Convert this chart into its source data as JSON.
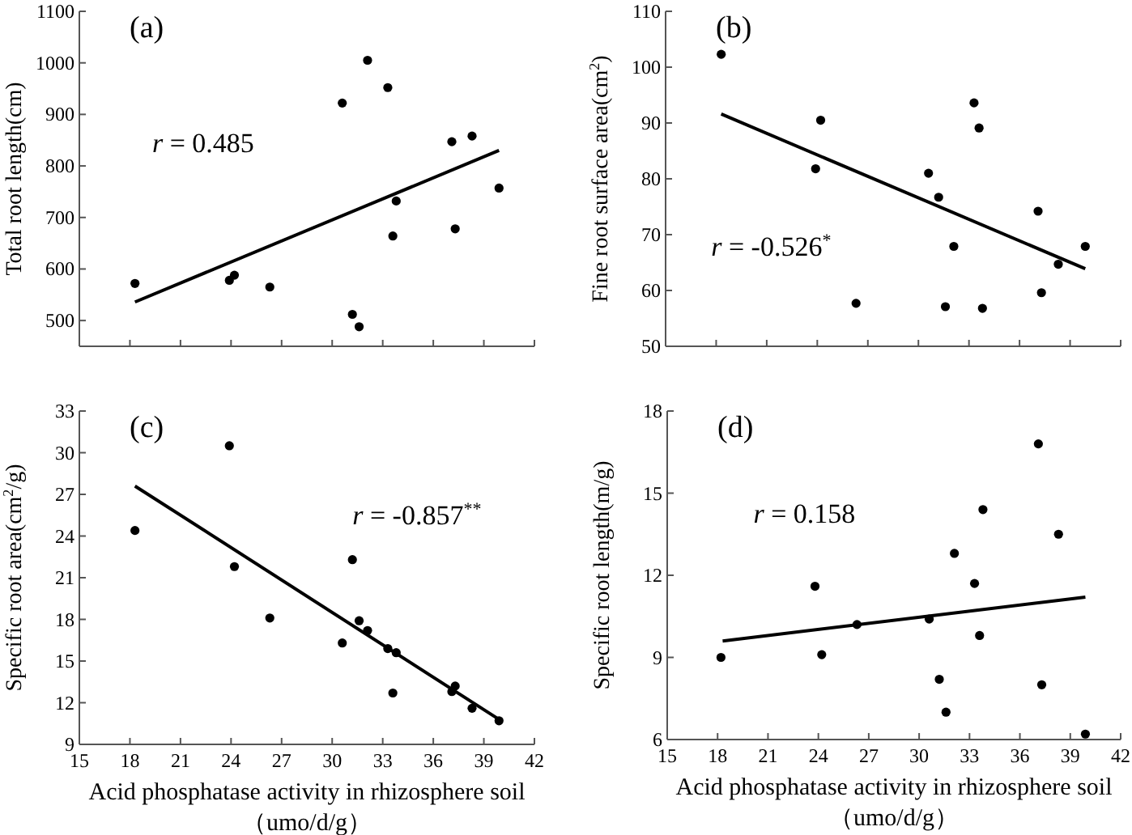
{
  "chart_data": [
    {
      "type": "scatter",
      "title": "(a)",
      "ylabel": "Total root length(cm)",
      "annotations": [
        "r = 0.485"
      ],
      "xlim": [
        15,
        42
      ],
      "xticks": [
        15,
        18,
        21,
        24,
        27,
        30,
        33,
        36,
        39,
        42
      ],
      "ylim": [
        450,
        1100
      ],
      "yticks": [
        500,
        600,
        700,
        800,
        900,
        1000,
        1100
      ],
      "tick_labels": "y",
      "series": [
        {
          "type": "scatter",
          "marker": "circle",
          "color": "#000000",
          "x": [
            18.3,
            23.9,
            24.2,
            26.3,
            30.6,
            31.2,
            31.6,
            32.1,
            33.3,
            33.6,
            33.8,
            37.1,
            37.3,
            38.3,
            39.9
          ],
          "values": [
            572,
            578,
            588,
            565,
            922,
            512,
            488,
            1005,
            952,
            664,
            732,
            847,
            678,
            858,
            757
          ]
        },
        {
          "type": "line",
          "color": "#000000",
          "x": [
            18.3,
            39.9
          ],
          "values": [
            536,
            830
          ]
        }
      ]
    },
    {
      "type": "scatter",
      "title": "(b)",
      "ylabel": "Fine root surface area(cm$^{2}$)",
      "annotations": [
        "r = -0.526$^{*}$"
      ],
      "xlim": [
        15,
        42
      ],
      "xticks": [
        15,
        18,
        21,
        24,
        27,
        30,
        33,
        36,
        39,
        42
      ],
      "ylim": [
        50,
        110
      ],
      "yticks": [
        50,
        60,
        70,
        80,
        90,
        100,
        110
      ],
      "tick_labels": "y",
      "series": [
        {
          "type": "scatter",
          "marker": "circle",
          "color": "#000000",
          "x": [
            18.3,
            23.9,
            24.2,
            26.3,
            30.6,
            31.2,
            31.6,
            32.1,
            33.3,
            33.6,
            33.8,
            37.1,
            37.3,
            38.3,
            39.9
          ],
          "values": [
            102.3,
            81.8,
            90.5,
            57.7,
            81.0,
            76.7,
            57.1,
            67.9,
            93.6,
            89.1,
            56.8,
            74.2,
            59.6,
            64.7,
            67.9
          ]
        },
        {
          "type": "line",
          "color": "#000000",
          "x": [
            18.3,
            39.9
          ],
          "values": [
            91.6,
            63.9
          ]
        }
      ]
    },
    {
      "type": "scatter",
      "title": "(c)",
      "ylabel": "Specific root area(cm$^{2}$/g)",
      "xlabel": "Acid phosphatase activity in rhizosphere soil\n（umo/d/g）",
      "annotations": [
        "r = -0.857$^{**}$"
      ],
      "xlim": [
        15,
        42
      ],
      "xticks": [
        15,
        18,
        21,
        24,
        27,
        30,
        33,
        36,
        39,
        42
      ],
      "ylim": [
        9,
        33
      ],
      "yticks": [
        9,
        12,
        15,
        18,
        21,
        24,
        27,
        30,
        33
      ],
      "series": [
        {
          "type": "scatter",
          "marker": "circle",
          "color": "#000000",
          "x": [
            18.3,
            23.9,
            24.2,
            26.3,
            30.6,
            31.2,
            31.6,
            32.1,
            33.3,
            33.6,
            33.8,
            37.1,
            37.3,
            38.3,
            39.9
          ],
          "values": [
            24.4,
            30.5,
            21.8,
            18.1,
            16.3,
            22.3,
            17.9,
            17.2,
            15.9,
            12.7,
            15.6,
            12.8,
            13.2,
            11.6,
            10.7
          ]
        },
        {
          "type": "line",
          "color": "#000000",
          "x": [
            18.3,
            39.9
          ],
          "values": [
            27.6,
            10.8
          ]
        }
      ]
    },
    {
      "type": "scatter",
      "title": "(d)",
      "ylabel": "Specific root length(m/g)",
      "xlabel": "Acid phosphatase activity in rhizosphere soil\n（umo/d/g）",
      "annotations": [
        "r = 0.158"
      ],
      "xlim": [
        15,
        42
      ],
      "xticks": [
        15,
        18,
        21,
        24,
        27,
        30,
        33,
        36,
        39,
        42
      ],
      "ylim": [
        6,
        18
      ],
      "yticks": [
        6,
        9,
        12,
        15,
        18
      ],
      "series": [
        {
          "type": "scatter",
          "marker": "circle",
          "color": "#000000",
          "x": [
            18.2,
            23.8,
            24.2,
            26.3,
            30.6,
            31.2,
            31.6,
            32.1,
            33.3,
            33.6,
            33.8,
            37.1,
            37.3,
            38.3,
            39.9
          ],
          "values": [
            9.0,
            11.6,
            9.1,
            10.2,
            10.4,
            8.2,
            7.0,
            12.8,
            11.7,
            9.8,
            14.4,
            16.8,
            8.0,
            13.5,
            6.2
          ]
        },
        {
          "type": "line",
          "color": "#000000",
          "x": [
            18.3,
            39.9
          ],
          "values": [
            9.6,
            11.2
          ]
        }
      ]
    }
  ]
}
